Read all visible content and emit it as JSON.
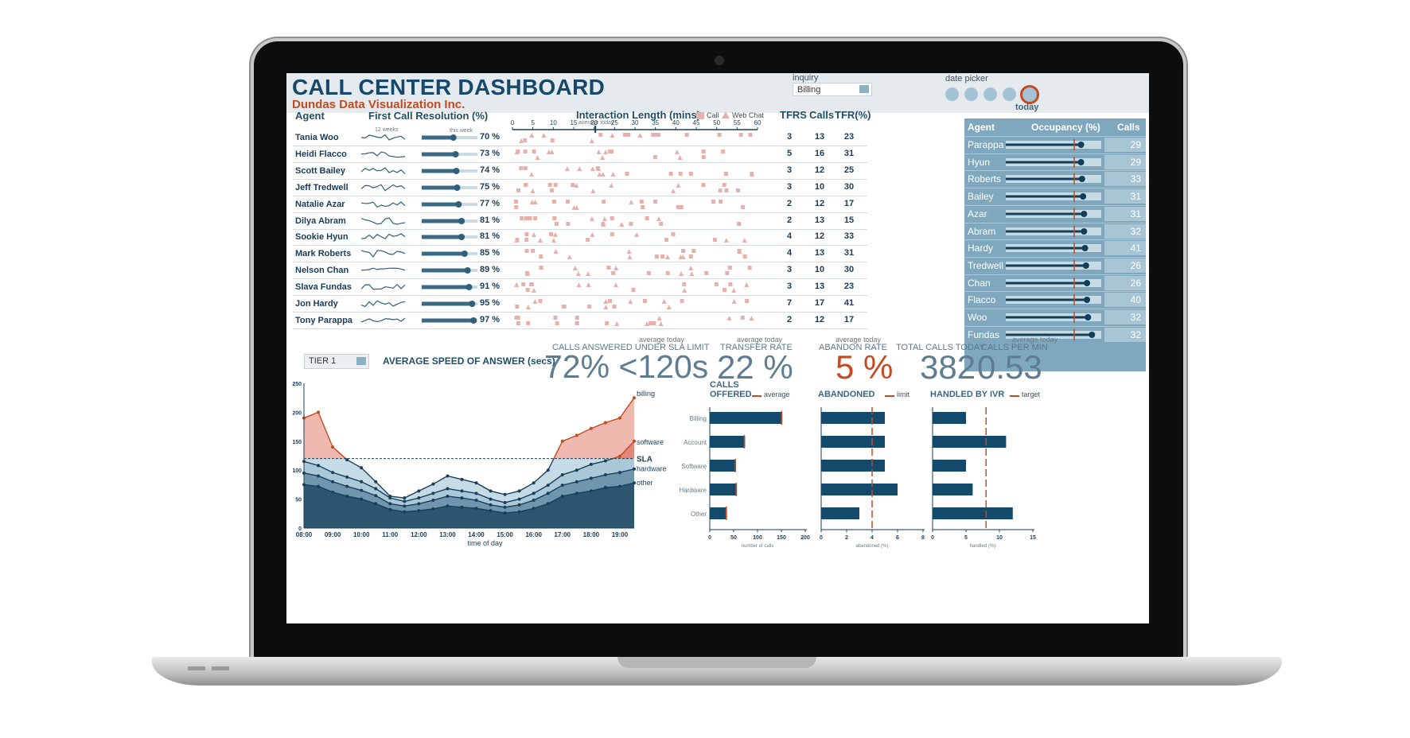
{
  "header": {
    "title": "CALL CENTER DASHBOARD",
    "subtitle": "Dundas Data Visualization Inc.",
    "inquiry_label": "inquiry",
    "inquiry_value": "Billing",
    "date_picker_label": "date picker",
    "today_label": "today"
  },
  "agents_table": {
    "col_agent": "Agent",
    "col_fcr": "First Call Resolution (%)",
    "sub_12weeks": "12 weeks",
    "sub_thisweek": "this week",
    "col_interaction": "Interaction Length (mins)",
    "legend_call": "Call",
    "legend_webchat": "Web Chat",
    "avg_today": "average today",
    "interaction_ticks": [
      "0",
      "5",
      "10",
      "15",
      "20",
      "25",
      "30",
      "35",
      "40",
      "45",
      "50",
      "55",
      "60"
    ],
    "col_tfrs": "TFRS",
    "col_calls": "Calls",
    "col_tfr": "TFR(%)",
    "rows": [
      {
        "name": "Tania Woo",
        "fcr": 70,
        "fcr_label": "70 %",
        "tfrs": "3",
        "calls": "13",
        "tfr": "23"
      },
      {
        "name": "Heidi Flacco",
        "fcr": 73,
        "fcr_label": "73 %",
        "tfrs": "5",
        "calls": "16",
        "tfr": "31"
      },
      {
        "name": "Scott Bailey",
        "fcr": 74,
        "fcr_label": "74 %",
        "tfrs": "3",
        "calls": "12",
        "tfr": "25"
      },
      {
        "name": "Jeff Tredwell",
        "fcr": 75,
        "fcr_label": "75 %",
        "tfrs": "3",
        "calls": "10",
        "tfr": "30"
      },
      {
        "name": "Natalie Azar",
        "fcr": 77,
        "fcr_label": "77 %",
        "tfrs": "2",
        "calls": "12",
        "tfr": "17"
      },
      {
        "name": "Dilya Abram",
        "fcr": 81,
        "fcr_label": "81 %",
        "tfrs": "2",
        "calls": "13",
        "tfr": "15"
      },
      {
        "name": "Sookie Hyun",
        "fcr": 81,
        "fcr_label": "81 %",
        "tfrs": "4",
        "calls": "12",
        "tfr": "33"
      },
      {
        "name": "Mark Roberts",
        "fcr": 85,
        "fcr_label": "85 %",
        "tfrs": "4",
        "calls": "13",
        "tfr": "31"
      },
      {
        "name": "Nelson Chan",
        "fcr": 89,
        "fcr_label": "89 %",
        "tfrs": "3",
        "calls": "10",
        "tfr": "30"
      },
      {
        "name": "Slava Fundas",
        "fcr": 91,
        "fcr_label": "91 %",
        "tfrs": "3",
        "calls": "13",
        "tfr": "23"
      },
      {
        "name": "Jon Hardy",
        "fcr": 95,
        "fcr_label": "95 %",
        "tfrs": "7",
        "calls": "17",
        "tfr": "41"
      },
      {
        "name": "Tony Parappa",
        "fcr": 97,
        "fcr_label": "97 %",
        "tfrs": "2",
        "calls": "12",
        "tfr": "17"
      }
    ]
  },
  "occupancy": {
    "col_agent": "Agent",
    "col_occ": "Occupancy (%)",
    "col_calls": "Calls",
    "rows": [
      {
        "name": "Parappa",
        "occ": 86,
        "calls": "29"
      },
      {
        "name": "Hyun",
        "occ": 86,
        "calls": "29"
      },
      {
        "name": "Roberts",
        "occ": 87,
        "calls": "33"
      },
      {
        "name": "Bailey",
        "occ": 88,
        "calls": "31"
      },
      {
        "name": "Azar",
        "occ": 89,
        "calls": "31"
      },
      {
        "name": "Abram",
        "occ": 89,
        "calls": "32"
      },
      {
        "name": "Hardy",
        "occ": 90,
        "calls": "41"
      },
      {
        "name": "Tredwell",
        "occ": 91,
        "calls": "26"
      },
      {
        "name": "Chan",
        "occ": 92,
        "calls": "26"
      },
      {
        "name": "Flacco",
        "occ": 92,
        "calls": "40"
      },
      {
        "name": "Woo",
        "occ": 93,
        "calls": "32"
      },
      {
        "name": "Fundas",
        "occ": 97,
        "calls": "32"
      }
    ]
  },
  "kpis": {
    "tier_value": "TIER 1",
    "asa_title": "AVERAGE SPEED OF ANSWER (secs)",
    "avg_today": "average today",
    "sla_label": "CALLS ANSWERED UNDER SLA LIMIT",
    "sla_value": "72% <120s",
    "transfer_label": "TRANSFER RATE",
    "transfer_value": "22 %",
    "abandon_label": "ABANDON RATE",
    "abandon_value": "5 %",
    "total_label": "TOTAL CALLS TODAY",
    "total_value": "382",
    "cpm_label": "CALLS PER MIN",
    "cpm_value": "0.53"
  },
  "bar_sections": {
    "calls_title": "CALLS",
    "offered": "OFFERED",
    "average": "average",
    "abandoned": "ABANDONED",
    "limit": "limit",
    "ivr": "HANDLED BY IVR",
    "target": "target"
  },
  "chart_data": [
    {
      "type": "area",
      "title": "AVERAGE SPEED OF ANSWER (secs)",
      "xlabel": "time of day",
      "ylabel": "",
      "ylim": [
        0,
        250
      ],
      "y_ticks": [
        "0",
        "50",
        "100",
        "150",
        "200",
        "250"
      ],
      "x_ticks": [
        "08:00",
        "09:00",
        "10:00",
        "11:00",
        "12:00",
        "13:00",
        "14:00",
        "15:00",
        "16:00",
        "17:00",
        "18:00",
        "19:00"
      ],
      "x": [
        8.0,
        8.5,
        9.0,
        9.5,
        10.0,
        10.5,
        11.0,
        11.5,
        12.0,
        12.5,
        13.0,
        13.5,
        14.0,
        14.5,
        15.0,
        15.5,
        16.0,
        16.5,
        17.0,
        17.5,
        18.0,
        18.5,
        19.0,
        19.5
      ],
      "sla": 120,
      "sla_label": "SLA",
      "series": [
        {
          "name": "other",
          "values": [
            75,
            72,
            62,
            55,
            50,
            42,
            32,
            28,
            30,
            33,
            38,
            36,
            34,
            30,
            26,
            28,
            34,
            42,
            55,
            60,
            64,
            70,
            72,
            78
          ]
        },
        {
          "name": "hardware",
          "values": [
            95,
            90,
            80,
            72,
            65,
            56,
            42,
            38,
            42,
            48,
            55,
            52,
            48,
            40,
            36,
            40,
            48,
            60,
            74,
            80,
            86,
            92,
            96,
            102
          ]
        },
        {
          "name": "software",
          "values": [
            115,
            108,
            96,
            88,
            80,
            68,
            52,
            46,
            52,
            60,
            68,
            64,
            60,
            50,
            44,
            50,
            60,
            74,
            92,
            100,
            110,
            116,
            124,
            150
          ]
        },
        {
          "name": "billing",
          "values": [
            190,
            200,
            140,
            118,
            104,
            80,
            55,
            52,
            64,
            76,
            90,
            84,
            78,
            64,
            58,
            64,
            78,
            100,
            150,
            160,
            172,
            182,
            190,
            225
          ]
        }
      ]
    },
    {
      "type": "bar",
      "title": "OFFERED",
      "categories": [
        "Billing",
        "Account",
        "Software",
        "Hardware",
        "Other"
      ],
      "values": [
        152,
        74,
        55,
        57,
        36
      ],
      "reference_line": 152,
      "xlim": [
        0,
        200
      ],
      "x_ticks": [
        "0",
        "50",
        "100",
        "150",
        "200"
      ],
      "xlabel": "number of calls"
    },
    {
      "type": "bar",
      "title": "ABANDONED",
      "categories": [
        "Billing",
        "Account",
        "Software",
        "Hardware",
        "Other"
      ],
      "values": [
        5.0,
        5.0,
        5.0,
        6.0,
        3.0
      ],
      "reference_line": 4.0,
      "xlim": [
        0,
        8
      ],
      "x_ticks": [
        "0",
        "2",
        "4",
        "6",
        "8"
      ],
      "xlabel": "abandoned (%)"
    },
    {
      "type": "bar",
      "title": "HANDLED BY IVR",
      "categories": [
        "Billing",
        "Account",
        "Software",
        "Hardware",
        "Other"
      ],
      "values": [
        5.0,
        11.0,
        5.0,
        6.0,
        12.0
      ],
      "reference_line": 8.0,
      "xlim": [
        0,
        15
      ],
      "x_ticks": [
        "0",
        "5",
        "10",
        "15"
      ],
      "xlabel": "handled (%)"
    }
  ]
}
